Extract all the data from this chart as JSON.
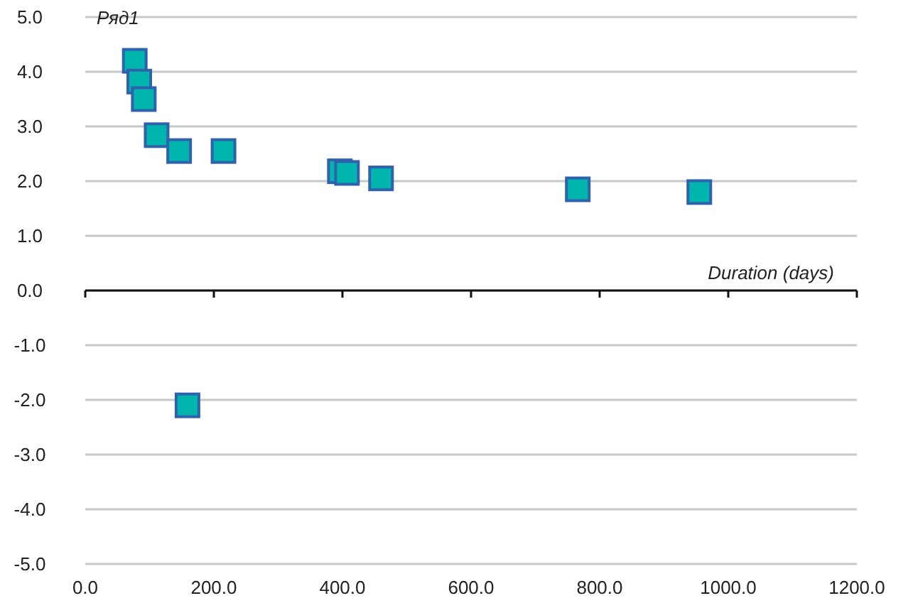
{
  "chart_data": {
    "type": "scatter",
    "ylabel": "Ряд1",
    "xlabel": "Duration (days)",
    "x": [
      77,
      84,
      91,
      111,
      146,
      215,
      396,
      407,
      460,
      766,
      955,
      159
    ],
    "series": [
      {
        "color": "#00b5ad",
        "values": [
          4.2,
          3.82,
          3.5,
          2.84,
          2.55,
          2.55,
          2.18,
          2.15,
          2.05,
          1.85,
          1.8,
          -2.1
        ]
      }
    ],
    "xlim": [
      0,
      1200
    ],
    "xticks": [
      {
        "value": 0,
        "label": "0.0"
      },
      {
        "value": 200,
        "label": "200.0"
      },
      {
        "value": 400,
        "label": "400.0"
      },
      {
        "value": 600,
        "label": "600.0"
      },
      {
        "value": 800,
        "label": "800.0"
      },
      {
        "value": 1000,
        "label": "1000.0"
      },
      {
        "value": 1200,
        "label": "1200.0"
      }
    ],
    "ylim": [
      -5,
      5
    ],
    "yticks": [
      {
        "value": -5,
        "label": "-5.0"
      },
      {
        "value": -4,
        "label": "-4.0"
      },
      {
        "value": -3,
        "label": "-3.0"
      },
      {
        "value": -2,
        "label": "-2.0"
      },
      {
        "value": -1,
        "label": "-1.0"
      },
      {
        "value": 0,
        "label": "0.0"
      },
      {
        "value": 1,
        "label": "1.0"
      },
      {
        "value": 2,
        "label": "2.0"
      },
      {
        "value": 3,
        "label": "3.0"
      },
      {
        "value": 4,
        "label": "4.0"
      },
      {
        "value": 5,
        "label": "5.0"
      }
    ],
    "grid": "y",
    "marker": "square"
  }
}
